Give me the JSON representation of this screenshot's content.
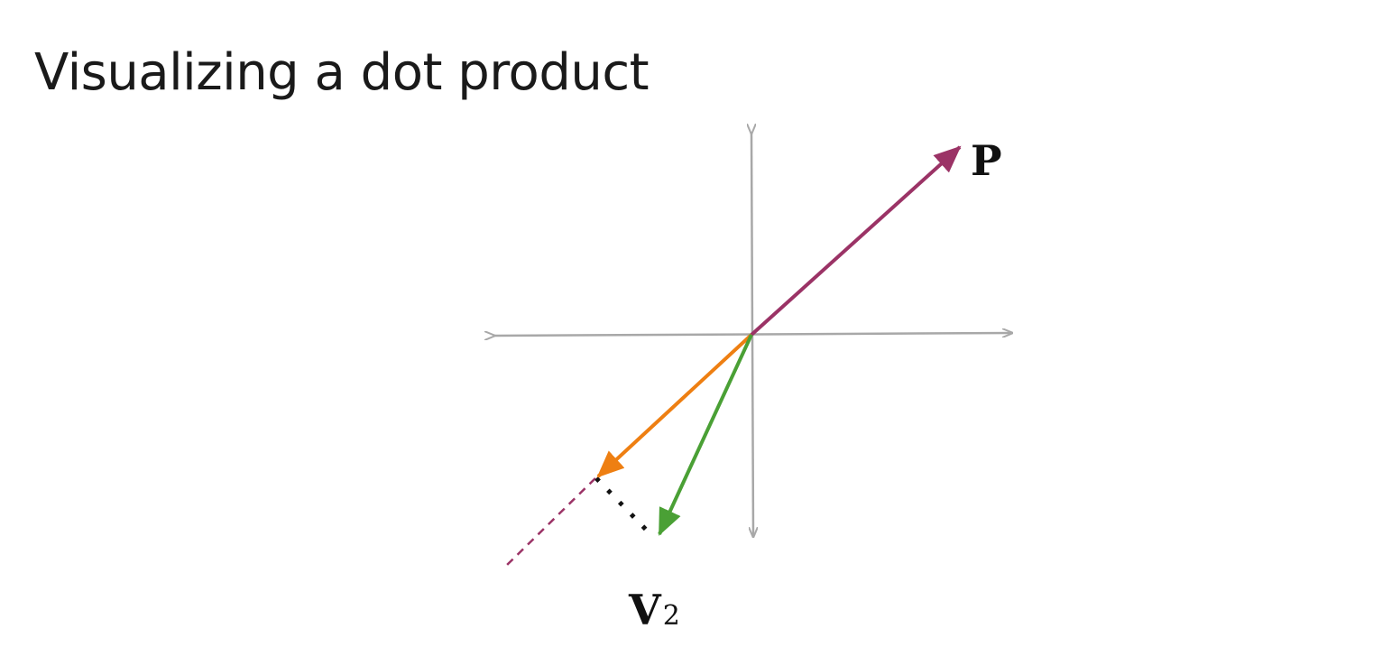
{
  "slide": {
    "title": "Visualizing a dot product"
  },
  "labels": {
    "p": "P",
    "v": "V",
    "v_subscript": "2"
  },
  "colors": {
    "axes": "#a8a8a8",
    "vector_p": "#9b3366",
    "projection": "#ee7f12",
    "vector_v2": "#4aa035",
    "perpendicular_dots": "#111111"
  }
}
